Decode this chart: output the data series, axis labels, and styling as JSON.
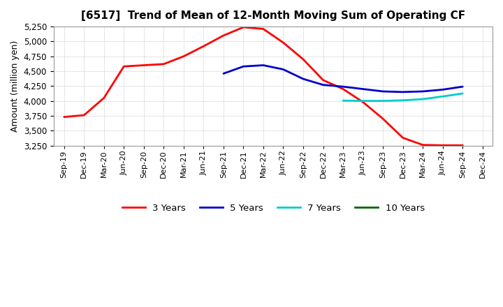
{
  "title": "[6517]  Trend of Mean of 12-Month Moving Sum of Operating CF",
  "ylabel": "Amount (million yen)",
  "ylim": [
    3250,
    5250
  ],
  "yticks": [
    3250,
    3500,
    3750,
    4000,
    4250,
    4500,
    4750,
    5000,
    5250
  ],
  "background_color": "#ffffff",
  "plot_bg_color": "#ffffff",
  "grid_color": "#aaaaaa",
  "x_labels": [
    "Sep-19",
    "Dec-19",
    "Mar-20",
    "Jun-20",
    "Sep-20",
    "Dec-20",
    "Mar-21",
    "Jun-21",
    "Sep-21",
    "Dec-21",
    "Mar-22",
    "Jun-22",
    "Sep-22",
    "Dec-22",
    "Mar-23",
    "Jun-23",
    "Sep-23",
    "Dec-23",
    "Mar-24",
    "Jun-24",
    "Sep-24",
    "Dec-24"
  ],
  "series": {
    "3years": {
      "color": "#ff0000",
      "linewidth": 2.0,
      "label": "3 Years",
      "x": [
        0,
        1,
        2,
        3,
        4,
        5,
        6,
        7,
        8,
        9,
        10,
        11,
        12,
        13,
        14,
        15,
        16,
        17,
        18,
        19,
        20
      ],
      "y": [
        3730,
        3760,
        4050,
        4580,
        4600,
        4620,
        4750,
        4920,
        5100,
        5240,
        5210,
        4980,
        4700,
        4350,
        4200,
        3980,
        3700,
        3380,
        3260,
        3253,
        3253
      ]
    },
    "5years": {
      "color": "#0000cc",
      "linewidth": 2.0,
      "label": "5 Years",
      "x": [
        8,
        9,
        10,
        11,
        12,
        13,
        14,
        15,
        16,
        17,
        18,
        19,
        20
      ],
      "y": [
        4460,
        4580,
        4600,
        4530,
        4370,
        4270,
        4240,
        4200,
        4160,
        4150,
        4160,
        4190,
        4240
      ]
    },
    "7years": {
      "color": "#00cccc",
      "linewidth": 2.0,
      "label": "7 Years",
      "x": [
        14,
        15,
        16,
        17,
        18,
        19,
        20
      ],
      "y": [
        4005,
        4000,
        4000,
        4010,
        4030,
        4075,
        4125
      ]
    },
    "10years": {
      "color": "#006600",
      "linewidth": 2.0,
      "label": "10 Years",
      "x": [],
      "y": []
    }
  }
}
